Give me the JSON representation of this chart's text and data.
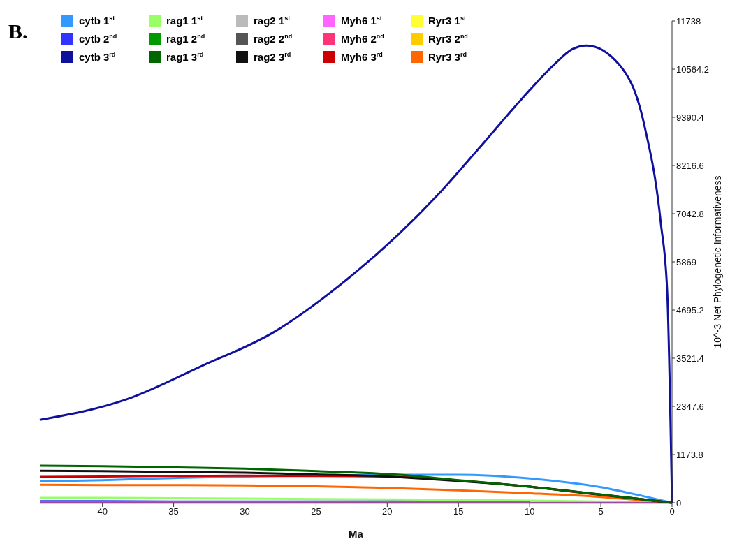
{
  "chart_data": {
    "type": "line",
    "title": "B.",
    "xlabel": "Ma",
    "ylabel": "10^-3 Net Phylogenetic Informativeness",
    "xlim": [
      44.4,
      0
    ],
    "xticks": [
      40,
      35,
      30,
      25,
      20,
      15,
      10,
      5,
      0
    ],
    "ylim": [
      0,
      11738
    ],
    "yticks": [
      0,
      1173.8,
      2347.6,
      3521.4,
      4695.2,
      5869,
      7042.8,
      8216.6,
      9390.4,
      10564.2,
      11738
    ],
    "legend": "top left",
    "x": [
      44.4,
      40,
      35,
      30,
      25,
      20,
      15,
      10,
      5,
      2,
      0
    ],
    "series": [
      {
        "name": "rag1 2$^{nd}$",
        "color": "#009900",
        "values": [
          null,
          null,
          null,
          null,
          null,
          null,
          null,
          null,
          null,
          null,
          null
        ]
      },
      {
        "name": "rag2 1$^{st}$",
        "color": "#bbbbbb",
        "values": [
          null,
          null,
          null,
          null,
          null,
          null,
          null,
          null,
          null,
          null,
          null
        ]
      },
      {
        "name": "rag2 2$^{nd}$",
        "color": "#555555",
        "values": [
          null,
          null,
          null,
          null,
          null,
          null,
          null,
          null,
          null,
          null,
          null
        ]
      },
      {
        "name": "Ryr3 1$^{st}$",
        "color": "#ffff33",
        "values": [
          null,
          null,
          null,
          null,
          null,
          null,
          null,
          null,
          null,
          null,
          null
        ]
      },
      {
        "name": "Ryr3 2$^{nd}$",
        "color": "#ffcc00",
        "values": [
          null,
          null,
          null,
          null,
          null,
          null,
          null,
          null,
          null,
          null,
          null
        ]
      },
      {
        "name": "Myh6 2$^{nd}$",
        "color": "#ff3377",
        "values": [
          null,
          null,
          null,
          null,
          null,
          null,
          null,
          null,
          null,
          null,
          null
        ]
      },
      {
        "name": "rag1 1$^{st}$",
        "color": "#99ff66",
        "values": [
          120,
          120,
          110,
          100,
          90,
          80,
          70,
          50,
          30,
          10,
          0
        ]
      },
      {
        "name": "cytb 2$^{nd}$",
        "color": "#3333ff",
        "values": [
          40,
          40,
          30,
          30,
          30,
          30,
          20,
          20,
          null,
          null,
          null
        ]
      },
      {
        "name": "Myh6 1$^{st}$",
        "color": "#ff66ff",
        "values": [
          0,
          0,
          0,
          0,
          0,
          0,
          0,
          0,
          0,
          0,
          0
        ]
      },
      {
        "name": "Ryr3 3$^{rd}$",
        "color": "#ff6600",
        "values": [
          440,
          430,
          430,
          420,
          400,
          360,
          300,
          230,
          140,
          60,
          0
        ]
      },
      {
        "name": "cytb 1$^{st}$",
        "color": "#3399ff",
        "values": [
          520,
          550,
          600,
          640,
          660,
          680,
          680,
          590,
          380,
          160,
          0
        ]
      },
      {
        "name": "Myh6 3$^{rd}$",
        "color": "#cc0000",
        "values": [
          630,
          640,
          650,
          660,
          650,
          640,
          540,
          390,
          190,
          80,
          0
        ]
      },
      {
        "name": "rag2 3$^{rd}$",
        "color": "#111111",
        "values": [
          780,
          770,
          750,
          730,
          690,
          640,
          530,
          390,
          200,
          80,
          0
        ]
      },
      {
        "name": "rag1 3$^{rd}$",
        "color": "#006600",
        "values": [
          900,
          890,
          860,
          830,
          770,
          700,
          550,
          390,
          200,
          80,
          0
        ]
      },
      {
        "name": "cytb 3$^{rd}$",
        "color": "#10109e",
        "x": [
          44.4,
          38.3,
          33.1,
          27.9,
          23.3,
          19.3,
          16.4,
          13.5,
          10.6,
          8.3,
          7.0,
          6.0,
          3.7,
          1.96,
          0.79,
          0.34,
          0
        ],
        "values": [
          2020,
          2520,
          3320,
          4170,
          5310,
          6510,
          7520,
          8660,
          9820,
          10670,
          11050,
          11140,
          10670,
          9220,
          6820,
          5150,
          0
        ]
      }
    ]
  }
}
